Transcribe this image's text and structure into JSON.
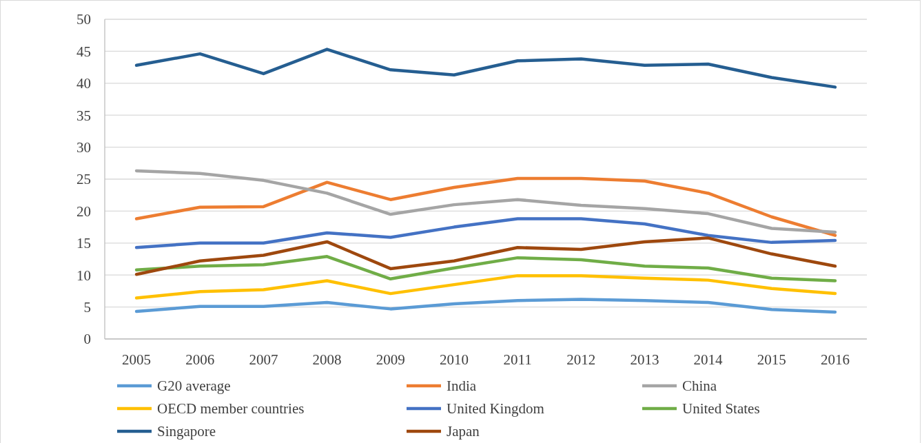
{
  "chart_data": {
    "type": "line",
    "categories": [
      "2005",
      "2006",
      "2007",
      "2008",
      "2009",
      "2010",
      "2011",
      "2012",
      "2013",
      "2014",
      "2015",
      "2016"
    ],
    "ylim": [
      0,
      50
    ],
    "yticks": [
      0,
      5,
      10,
      15,
      20,
      25,
      30,
      35,
      40,
      45,
      50
    ],
    "grid": "y",
    "legend": "bottom",
    "marker": "none",
    "line_style": "solid",
    "series": [
      {
        "name": "G20 average",
        "color": "#5b9bd5",
        "values": [
          4.3,
          5.1,
          5.1,
          5.7,
          4.7,
          5.5,
          6.0,
          6.2,
          6.0,
          5.7,
          4.6,
          4.2
        ]
      },
      {
        "name": "India",
        "color": "#ed7d31",
        "values": [
          18.8,
          20.6,
          20.7,
          24.5,
          21.8,
          23.7,
          25.1,
          25.1,
          24.7,
          22.8,
          19.1,
          16.2
        ]
      },
      {
        "name": "China",
        "color": "#a5a5a5",
        "values": [
          26.3,
          25.9,
          24.8,
          22.8,
          19.5,
          21.0,
          21.8,
          20.9,
          20.4,
          19.6,
          17.3,
          16.7
        ]
      },
      {
        "name": "OECD member countries",
        "color": "#ffc000",
        "values": [
          6.4,
          7.4,
          7.7,
          9.1,
          7.1,
          8.5,
          9.9,
          9.9,
          9.5,
          9.2,
          7.9,
          7.1
        ]
      },
      {
        "name": "United Kingdom",
        "color": "#4472c4",
        "values": [
          14.3,
          15.0,
          15.0,
          16.6,
          15.9,
          17.5,
          18.8,
          18.8,
          18.0,
          16.2,
          15.1,
          15.4
        ]
      },
      {
        "name": "United States",
        "color": "#70ad47",
        "values": [
          10.8,
          11.4,
          11.6,
          12.9,
          9.4,
          11.1,
          12.7,
          12.4,
          11.4,
          11.1,
          9.5,
          9.1
        ]
      },
      {
        "name": "Singapore",
        "color": "#255e91",
        "values": [
          42.8,
          44.6,
          41.5,
          45.3,
          42.1,
          41.3,
          43.5,
          43.8,
          42.8,
          43.0,
          40.9,
          39.4
        ]
      },
      {
        "name": "Japan",
        "color": "#9e480e",
        "values": [
          10.1,
          12.2,
          13.1,
          15.2,
          11.0,
          12.2,
          14.3,
          14.0,
          15.2,
          15.8,
          13.3,
          11.4
        ]
      }
    ]
  }
}
